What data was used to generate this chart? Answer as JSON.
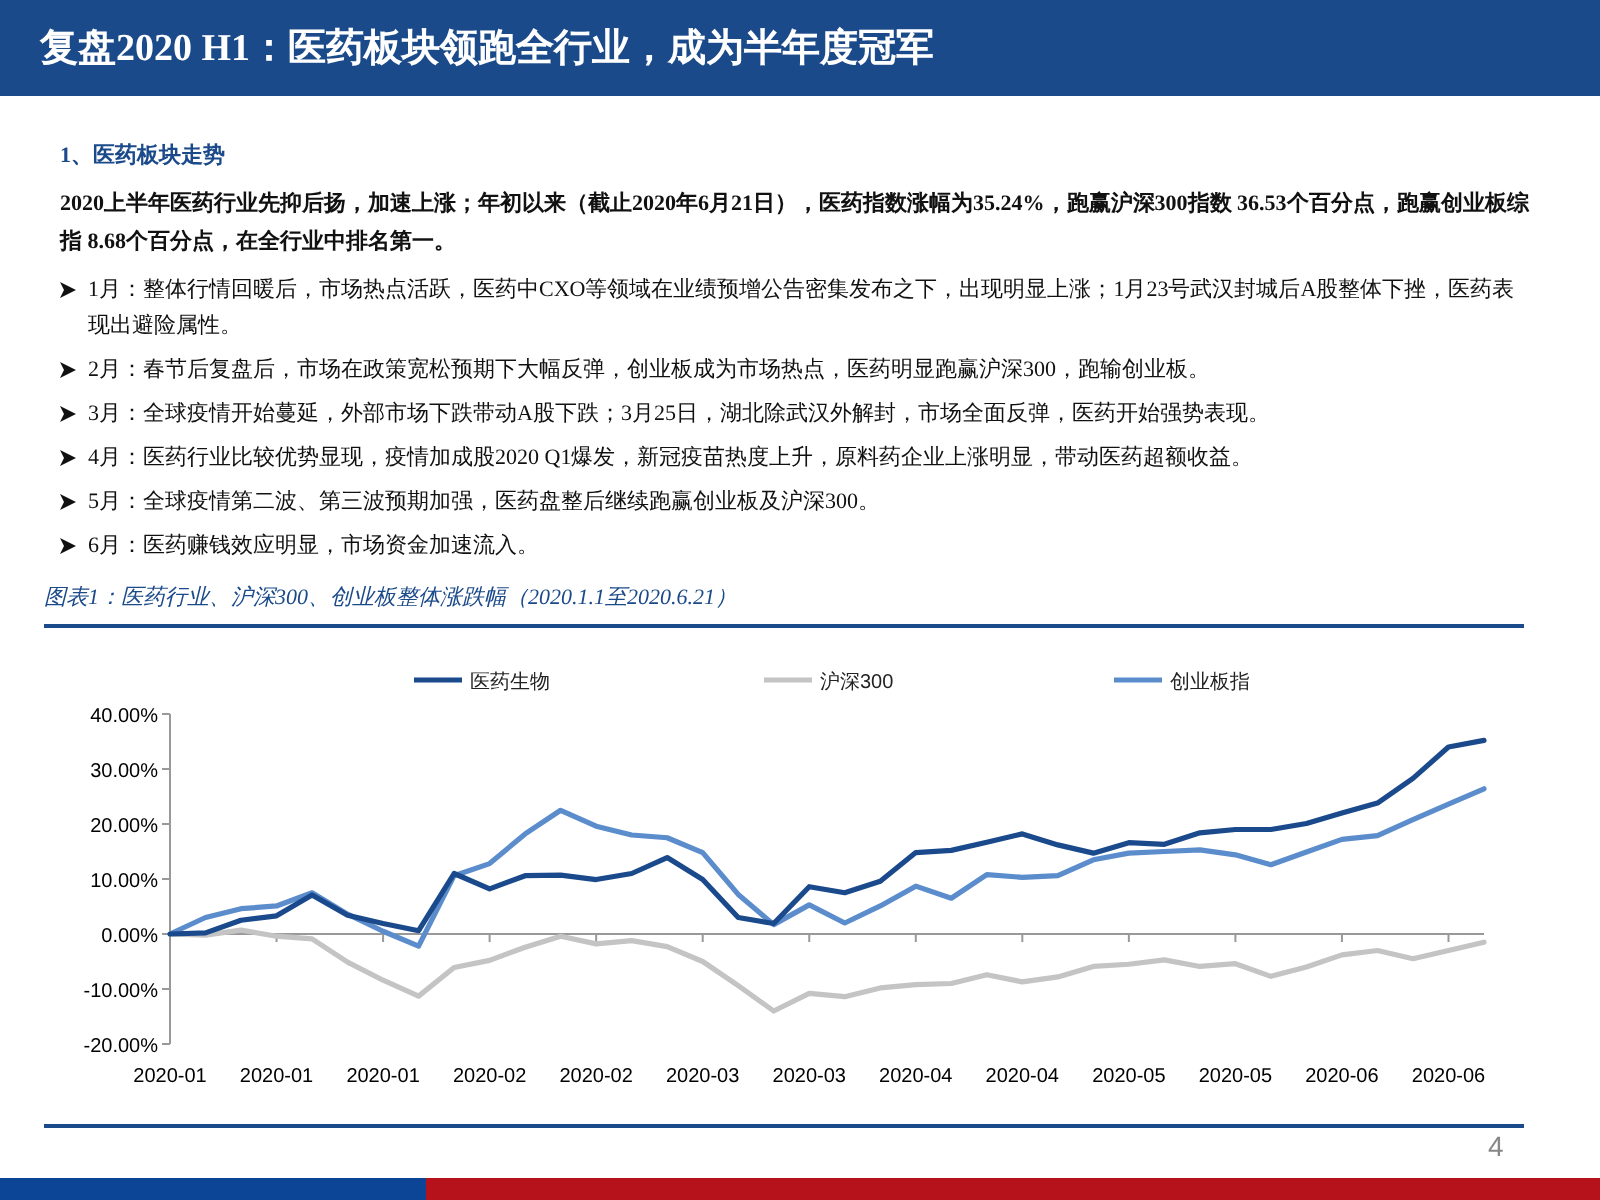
{
  "chart_data": {
    "type": "line",
    "title": "复盘2020 H1：医药板块领跑全行业，成为半年度冠军",
    "subtitle": "图表1：医药行业、沪深300、创业板整体涨跌幅（2020.1.1至2020.6.21）",
    "annotations": [
      "1、医药板块走势",
      "2020上半年医药行业先抑后扬，加速上涨；年初以来（截止2020年6月21日），医药指数涨幅为35.24%，跑赢沪深300指数 36.53个百分点，跑赢创业板综指 8.68个百分点，在全行业中排名第一。",
      "1月：整体行情回暖后，市场热点活跃，医药中CXO等领域在业绩预增公告密集发布之下，出现明显上涨；1月23号武汉封城后A股整体下挫，医药表现出避险属性。",
      "2月：春节后复盘后，市场在政策宽松预期下大幅反弹，创业板成为市场热点，医药明显跑赢沪深300，跑输创业板。",
      "3月：全球疫情开始蔓延，外部市场下跌带动A股下跌；3月25日，湖北除武汉外解封，市场全面反弹，医药开始强势表现。",
      "4月：医药行业比较优势显现，疫情加成股2020 Q1爆发，新冠疫苗热度上升，原料药企业上涨明显，带动医药超额收益。",
      "5月：全球疫情第二波、第三波预期加强，医药盘整后继续跑赢创业板及沪深300。",
      "6月：医药赚钱效应明显，市场资金加速流入。",
      "4"
    ],
    "categories": [
      "2020-01",
      null,
      null,
      "2020-01",
      null,
      null,
      "2020-01",
      null,
      null,
      "2020-02",
      null,
      null,
      "2020-02",
      null,
      null,
      "2020-03",
      null,
      null,
      "2020-03",
      null,
      null,
      "2020-04",
      null,
      null,
      "2020-04",
      null,
      null,
      "2020-05",
      null,
      null,
      "2020-05",
      null,
      null,
      "2020-06",
      null,
      null,
      "2020-06",
      null
    ],
    "ylim": [
      -20,
      40
    ],
    "yticks": [
      {
        "value": -20,
        "label": "-20.00%"
      },
      {
        "value": -10,
        "label": "-10.00%"
      },
      {
        "value": 0,
        "label": "0.00%"
      },
      {
        "value": 10,
        "label": "10.00%"
      },
      {
        "value": 20,
        "label": "20.00%"
      },
      {
        "value": 30,
        "label": "30.00%"
      },
      {
        "value": 40,
        "label": "40.00%"
      }
    ],
    "legend": "top",
    "series": [
      {
        "name": "医药生物",
        "color": "#1a4a8c",
        "values": [
          0,
          0.2,
          2.5,
          3.3,
          7.1,
          3.4,
          1.9,
          0.6,
          11,
          8.2,
          10.6,
          10.7,
          9.9,
          11,
          13.9,
          9.9,
          3,
          1.9,
          8.6,
          7.5,
          9.6,
          14.8,
          15.2,
          16.7,
          18.2,
          16.2,
          14.7,
          16.6,
          16.3,
          18.4,
          19,
          19,
          20.1,
          22,
          23.8,
          28.3,
          34,
          35.2
        ]
      },
      {
        "name": "沪深300",
        "color": "#c4c4c4",
        "values": [
          0,
          -0.2,
          0.7,
          -0.4,
          -0.9,
          -5.1,
          -8.4,
          -11.3,
          -6.1,
          -4.8,
          -2.4,
          -0.4,
          -1.8,
          -1.2,
          -2.3,
          -5,
          -9.4,
          -14,
          -10.8,
          -11.4,
          -9.8,
          -9.2,
          -9,
          -7.4,
          -8.7,
          -7.8,
          -5.9,
          -5.5,
          -4.7,
          -5.9,
          -5.4,
          -7.7,
          -6,
          -3.8,
          -3,
          -4.5,
          -3,
          -1.5
        ]
      },
      {
        "name": "创业板指",
        "color": "#5b8ccc",
        "values": [
          0,
          3,
          4.6,
          5.1,
          7.5,
          3.6,
          0.5,
          -2.2,
          10.6,
          12.8,
          18.2,
          22.5,
          19.6,
          18,
          17.5,
          14.8,
          7.2,
          1.7,
          5.3,
          2,
          5.1,
          8.7,
          6.5,
          10.8,
          10.3,
          10.6,
          13.5,
          14.7,
          15,
          15.3,
          14.4,
          12.6,
          14.9,
          17.2,
          17.9,
          20.8,
          23.6,
          26.4
        ]
      }
    ]
  }
}
